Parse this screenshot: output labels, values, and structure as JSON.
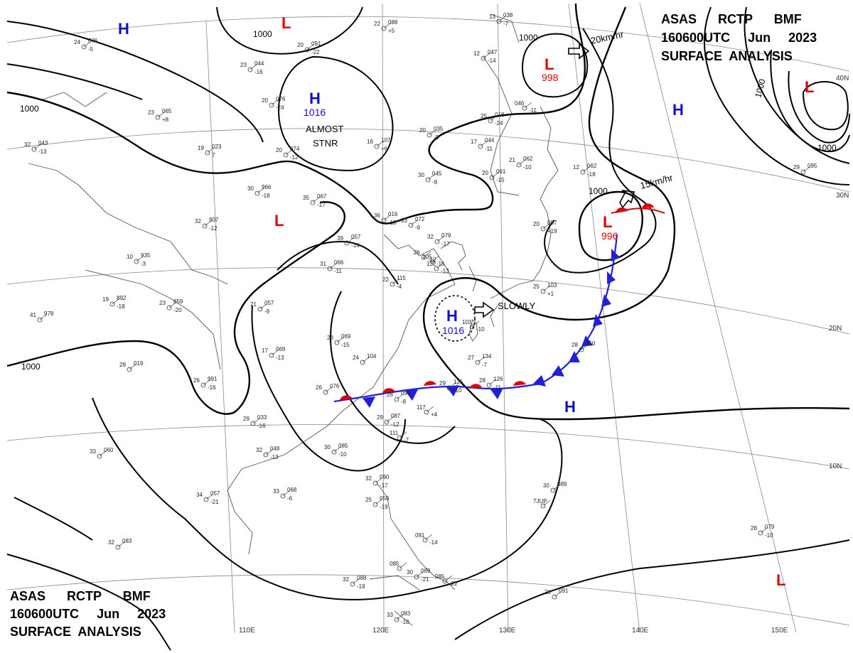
{
  "header_top": {
    "line1": "ASAS      RCTP      BMF",
    "line2": "160600UTC     Jun     2023",
    "line3": "SURFACE  ANALYSIS"
  },
  "header_bottom": {
    "line1": "ASAS      RCTP      BMF",
    "line2": "160600UTC     Jun     2023",
    "line3": "SURFACE  ANALYSIS"
  },
  "isobar_label": "1000",
  "pressure_systems": [
    {
      "id": "h-nw",
      "type": "H",
      "value": ""
    },
    {
      "id": "h-mongolia",
      "type": "H",
      "value": "1016"
    },
    {
      "id": "h-taiwan",
      "type": "H",
      "value": "1016"
    },
    {
      "id": "h-pacific-n",
      "type": "H",
      "value": ""
    },
    {
      "id": "h-pacific-s",
      "type": "H",
      "value": ""
    },
    {
      "id": "l-north",
      "type": "L",
      "value": ""
    },
    {
      "id": "l-okhotsk",
      "type": "L",
      "value": "998"
    },
    {
      "id": "l-japan",
      "type": "L",
      "value": "996"
    },
    {
      "id": "l-tibet",
      "type": "L",
      "value": ""
    },
    {
      "id": "l-ne",
      "type": "L",
      "value": ""
    },
    {
      "id": "l-se",
      "type": "L",
      "value": ""
    }
  ],
  "motion_labels": {
    "okhotsk": "20km/hr",
    "japan": "15km/hr",
    "taiwan": "SLOWLY",
    "mongolia": "ALMOST STNR"
  },
  "lat_labels": [
    "40N",
    "30N",
    "20N",
    "10N"
  ],
  "lon_labels": [
    "110E",
    "120E",
    "130E",
    "140E",
    "150E"
  ],
  "station_plots": [
    {
      "t": "24",
      "p": "076",
      "v": "-5"
    },
    {
      "t": "23",
      "p": "044",
      "v": "-16"
    },
    {
      "t": "20",
      "p": "091",
      "v": "-22"
    },
    {
      "t": "20",
      "p": "076",
      "v": "-24"
    },
    {
      "t": "23",
      "p": "065",
      "v": "+8"
    },
    {
      "t": "32",
      "p": "043",
      "v": "-13"
    },
    {
      "t": "19",
      "p": "023",
      "v": "7"
    },
    {
      "t": "20",
      "p": "074",
      "v": "-12"
    },
    {
      "t": "30",
      "p": "966",
      "v": "-18"
    },
    {
      "t": "32",
      "p": "907",
      "v": "-12"
    },
    {
      "t": "35",
      "p": "067",
      "v": "-17"
    },
    {
      "t": "36",
      "p": "016",
      "v": "-18"
    },
    {
      "t": "39",
      "p": "057",
      "v": "-14"
    },
    {
      "t": "33",
      "p": "072",
      "v": "-9"
    },
    {
      "t": "32",
      "p": "079",
      "v": "-17"
    },
    {
      "t": "10",
      "p": "935",
      "v": "-3"
    },
    {
      "t": "19",
      "p": "892",
      "v": "-18"
    },
    {
      "t": "23",
      "p": "859",
      "v": "-20"
    },
    {
      "t": "41",
      "p": "978",
      "v": ""
    },
    {
      "t": "31",
      "p": "066",
      "v": "-11"
    },
    {
      "t": "22",
      "p": "115",
      "v": "-4"
    },
    {
      "t": "21",
      "p": "057",
      "v": "-9"
    },
    {
      "t": "28",
      "p": "069",
      "v": "-15"
    },
    {
      "t": "17",
      "p": "069",
      "v": "-13"
    },
    {
      "t": "24",
      "p": "104",
      "v": ""
    },
    {
      "t": "28",
      "p": "019",
      "v": ""
    },
    {
      "t": "26",
      "p": "991",
      "v": "-16"
    },
    {
      "t": "26",
      "p": "076",
      "v": ""
    },
    {
      "t": "28",
      "p": "099",
      "v": "-8"
    },
    {
      "t": "27",
      "p": "134",
      "v": "-7"
    },
    {
      "t": "29",
      "p": "125",
      "v": "-10"
    },
    {
      "t": "28",
      "p": "126",
      "v": "-11"
    },
    {
      "t": "117",
      "p": "",
      "v": "+4"
    },
    {
      "t": "29",
      "p": "087",
      "v": "-12"
    },
    {
      "t": "111",
      "p": "",
      "v": "-7"
    },
    {
      "t": "29",
      "p": "033",
      "v": "-16"
    },
    {
      "t": "32",
      "p": "048",
      "v": "-13"
    },
    {
      "t": "30",
      "p": "085",
      "v": "-10"
    },
    {
      "t": "33",
      "p": "060",
      "v": ""
    },
    {
      "t": "33",
      "p": "068",
      "v": "-6"
    },
    {
      "t": "34",
      "p": "057",
      "v": "-21"
    },
    {
      "t": "32",
      "p": "090",
      "v": "-17"
    },
    {
      "t": "25",
      "p": "056",
      "v": "-19"
    },
    {
      "t": "32",
      "p": "083",
      "v": ""
    },
    {
      "t": "091",
      "p": "",
      "v": "-14"
    },
    {
      "t": "085",
      "p": "",
      "v": ""
    },
    {
      "t": "30",
      "p": "089",
      "v": "-21"
    },
    {
      "t": "085",
      "p": "",
      "v": "-22"
    },
    {
      "t": "32",
      "p": "088",
      "v": "-19"
    },
    {
      "t": "33",
      "p": "083",
      "v": "-18"
    },
    {
      "t": "26",
      "p": "091",
      "v": ""
    },
    {
      "t": "30",
      "p": "089",
      "v": ""
    },
    {
      "t": "28",
      "p": "079",
      "v": "-10"
    },
    {
      "t": "28",
      "p": "150",
      "v": ""
    },
    {
      "t": "25",
      "p": "103",
      "v": "+1"
    },
    {
      "t": "20",
      "p": "087",
      "v": "+19"
    },
    {
      "t": "12",
      "p": "062",
      "v": "-18"
    },
    {
      "t": "20",
      "p": "061",
      "v": "-15"
    },
    {
      "t": "21",
      "p": "062",
      "v": "-10"
    },
    {
      "t": "30",
      "p": "045",
      "v": "-9"
    },
    {
      "t": "12",
      "p": "047",
      "v": "-14"
    },
    {
      "t": "25",
      "p": "018",
      "v": "-24"
    },
    {
      "t": "20",
      "p": "035",
      "v": "-8"
    },
    {
      "t": "17",
      "p": "044",
      "v": "-11"
    },
    {
      "t": "16",
      "p": "107",
      "v": "+6"
    },
    {
      "t": "22",
      "p": "088",
      "v": "+5"
    },
    {
      "t": "13",
      "p": "038",
      "v": "-7"
    },
    {
      "t": "046",
      "p": "",
      "v": "-11"
    },
    {
      "t": "29",
      "p": "095",
      "v": ""
    },
    {
      "t": "103",
      "p": "",
      "v": "-10"
    },
    {
      "t": "105",
      "p": "",
      "v": "-15"
    },
    {
      "t": "132",
      "p": "",
      "v": "-13"
    },
    {
      "t": "26",
      "p": "",
      "v": "-12"
    },
    {
      "t": "7JUP",
      "p": "",
      "v": ""
    }
  ]
}
